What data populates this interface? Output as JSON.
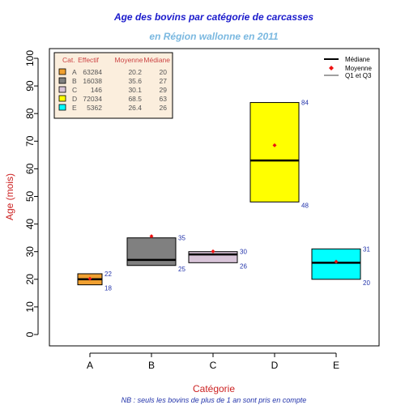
{
  "chart_data": {
    "type": "box",
    "title": "Age des bovins par catégorie de carcasses",
    "subtitle": "en Région wallonne en 2011",
    "xlabel": "Catégorie",
    "ylabel": "Age (mois)",
    "footnote": "NB : seuls les bovins de plus de 1 an sont pris en compte",
    "ylim": [
      0,
      100
    ],
    "yticks": [
      0,
      10,
      20,
      30,
      40,
      50,
      60,
      70,
      80,
      90,
      100
    ],
    "categories": [
      "A",
      "B",
      "C",
      "D",
      "E"
    ],
    "boxes": [
      {
        "category": "A",
        "effectif": 63284,
        "moyenne": 20.2,
        "mediane": 20,
        "q1": 18,
        "q3": 22,
        "color": "#f0a030"
      },
      {
        "category": "B",
        "effectif": 16038,
        "moyenne": 35.6,
        "mediane": 27,
        "q1": 25,
        "q3": 35,
        "color": "#808080"
      },
      {
        "category": "C",
        "effectif": 146,
        "moyenne": 30.1,
        "mediane": 29,
        "q1": 26,
        "q3": 30,
        "color": "#d8c4d8"
      },
      {
        "category": "D",
        "effectif": 72034,
        "moyenne": 68.5,
        "mediane": 63,
        "q1": 48,
        "q3": 84,
        "color": "#ffff00"
      },
      {
        "category": "E",
        "effectif": 5362,
        "moyenne": 26.4,
        "mediane": 26,
        "q1": 20,
        "q3": 31,
        "color": "#00ffff"
      }
    ],
    "table_headers": [
      "Cat.",
      "Effectif",
      "Moyenne",
      "Médiane"
    ],
    "legend": {
      "position": "top-right",
      "items": [
        {
          "label": "Médiane",
          "symbol": "thick-line"
        },
        {
          "label": "Moyenne",
          "symbol": "red-diamond"
        },
        {
          "label": "Q1 et Q3",
          "symbol": "thin-line"
        }
      ]
    },
    "colors": {
      "title": "#1a1acc",
      "subtitle": "#7ab8e0",
      "axis_label": "#cc2222",
      "q_label": "#2233aa",
      "mean": "#ee1111",
      "table_text": "#cc4444",
      "table_bg": "#fbeedd"
    }
  }
}
